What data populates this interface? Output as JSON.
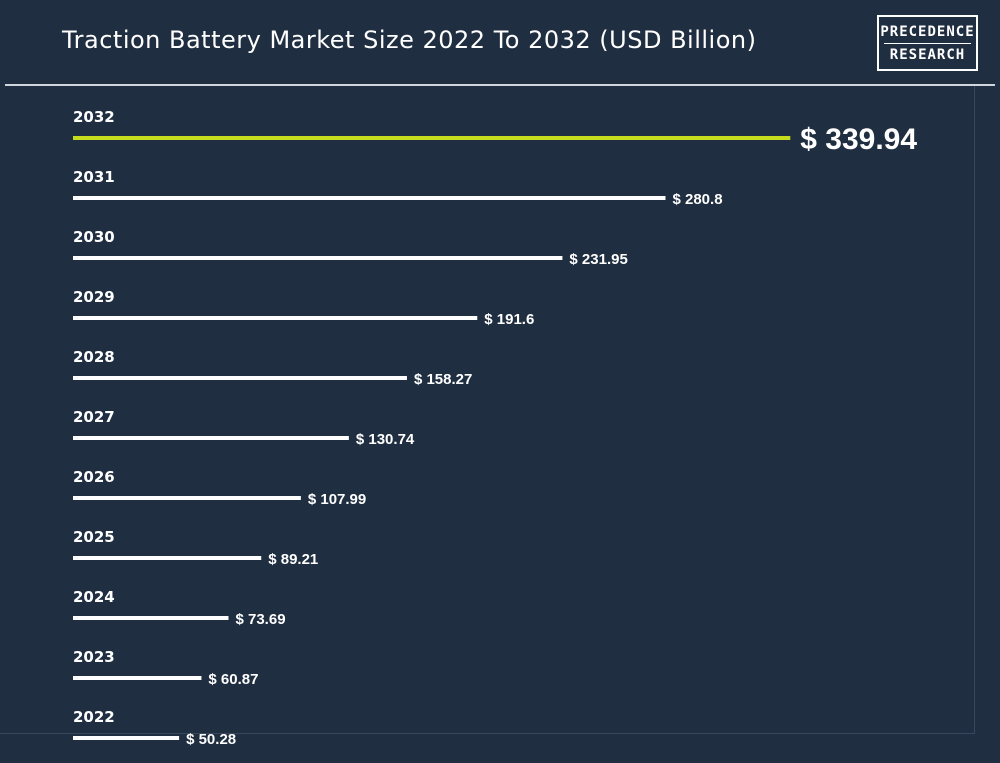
{
  "header": {
    "title": "Traction Battery Market Size 2022 To 2032 (USD Billion)",
    "logo_line1": "PRECEDENCE",
    "logo_line2": "RESEARCH"
  },
  "colors": {
    "background": "#1f2e40",
    "bar": "#ffffff",
    "highlight_bar": "#c8dc1e",
    "text": "#ffffff"
  },
  "chart_data": {
    "type": "bar",
    "orientation": "horizontal",
    "title": "Traction Battery Market Size 2022 To 2032 (USD Billion)",
    "categories": [
      "2032",
      "2031",
      "2030",
      "2029",
      "2028",
      "2027",
      "2026",
      "2025",
      "2024",
      "2023",
      "2022"
    ],
    "values": [
      339.94,
      280.8,
      231.95,
      191.6,
      158.27,
      130.74,
      107.99,
      89.21,
      73.69,
      60.87,
      50.28
    ],
    "value_labels": [
      "$ 339.94",
      "$ 280.8",
      "$ 231.95",
      "$ 191.6",
      "$ 158.27",
      "$ 130.74",
      "$ 107.99",
      "$ 89.21",
      "$ 73.69",
      "$ 60.87",
      "$ 50.28"
    ],
    "highlight": "2032",
    "xlabel": "",
    "ylabel": "",
    "grid": false,
    "legend": "none"
  }
}
